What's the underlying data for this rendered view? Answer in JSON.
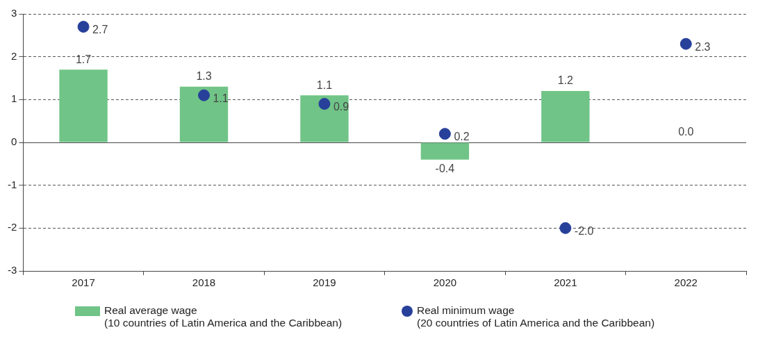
{
  "chart_data": {
    "type": "bar",
    "categories": [
      "2017",
      "2018",
      "2019",
      "2020",
      "2021",
      "2022"
    ],
    "series": [
      {
        "name": "Real average wage\n(10 countries of Latin America and the Caribbean)",
        "color": "#70c487",
        "values": [
          1.7,
          1.3,
          1.1,
          -0.4,
          1.2,
          0.0
        ],
        "value_labels": [
          "1.7",
          "1.3",
          "1.1",
          "-0.4",
          "1.2",
          "0.0"
        ]
      },
      {
        "name": "Real minimum wage\n(20 countries of Latin America and the Caribbean)",
        "type": "scatter",
        "color": "#27409a",
        "values": [
          2.7,
          1.1,
          0.9,
          0.2,
          -2.0,
          2.3
        ],
        "value_labels": [
          "2.7",
          "1.1",
          "0.9",
          "0.2",
          "-2.0",
          "2.3"
        ]
      }
    ],
    "ylim": [
      -3,
      3
    ],
    "yticks": [
      -3,
      -2,
      -1,
      0,
      1,
      2,
      3
    ],
    "grid": "y",
    "legend": "bottom",
    "marker": "circle"
  }
}
